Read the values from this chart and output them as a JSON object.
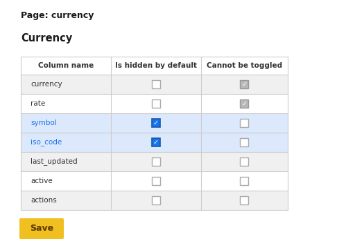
{
  "page_title": "Page: currency",
  "section_title": "Currency",
  "headers": [
    "Column name",
    "Is hidden by default",
    "Cannot be toggled"
  ],
  "rows": [
    {
      "name": "currency",
      "hidden": false,
      "toggled": true,
      "toggled_disabled": true
    },
    {
      "name": "rate",
      "hidden": false,
      "toggled": true,
      "toggled_disabled": true
    },
    {
      "name": "symbol",
      "hidden": true,
      "toggled": false,
      "toggled_disabled": false
    },
    {
      "name": "iso_code",
      "hidden": true,
      "toggled": false,
      "toggled_disabled": false
    },
    {
      "name": "last_updated",
      "hidden": false,
      "toggled": false,
      "toggled_disabled": false
    },
    {
      "name": "active",
      "hidden": false,
      "toggled": false,
      "toggled_disabled": false
    },
    {
      "name": "actions",
      "hidden": false,
      "toggled": false,
      "toggled_disabled": false
    }
  ],
  "save_button_text": "Save",
  "save_button_color": "#F0C020",
  "save_button_text_color": "#5a3800",
  "bg_color": "#ffffff",
  "row_bg_alt": "#f0f0f0",
  "row_bg_white": "#ffffff",
  "row_line_color": "#cccccc",
  "row_highlight_color": "#dce8fb",
  "highlighted_rows": [
    2,
    3
  ],
  "highlighted_text_color": "#1a73e8",
  "checkbox_blue": "#1a73e8",
  "checkbox_blue_border": "#1558b0",
  "checkbox_gray_fill": "#b8b8b8",
  "checkbox_gray_border": "#999999",
  "normal_text_color": "#333333",
  "header_text_color": "#333333",
  "page_title_color": "#1a1a1a",
  "section_title_color": "#1a1a1a"
}
